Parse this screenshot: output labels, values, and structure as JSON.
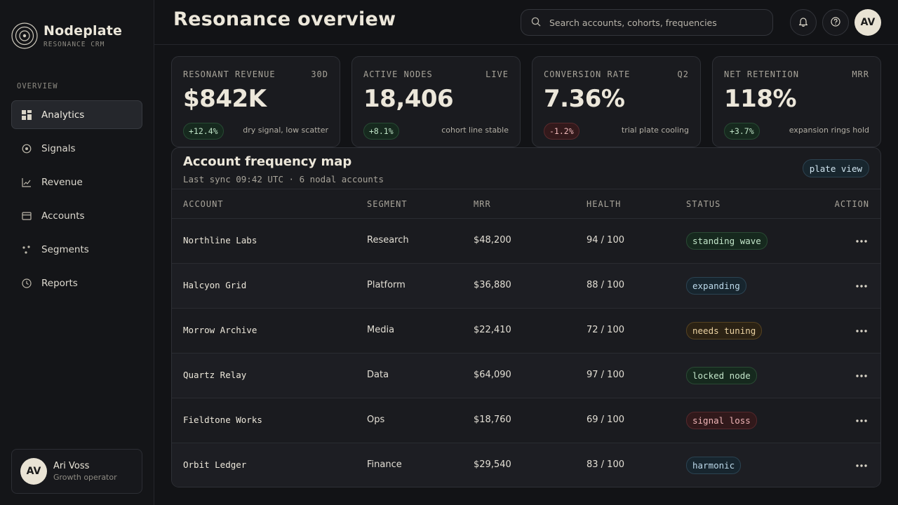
{
  "brand": {
    "name": "Nodeplate",
    "subtitle": "RESONANCE CRM"
  },
  "sidebar": {
    "section_label": "OVERVIEW",
    "items": [
      {
        "label": "Analytics",
        "icon": "grid-icon",
        "active": true
      },
      {
        "label": "Signals",
        "icon": "target-icon"
      },
      {
        "label": "Revenue",
        "icon": "trend-line-icon"
      },
      {
        "label": "Accounts",
        "icon": "folder-icon"
      },
      {
        "label": "Segments",
        "icon": "scatter-dots-icon"
      },
      {
        "label": "Reports",
        "icon": "clock-icon"
      }
    ],
    "user": {
      "initials": "AV",
      "name": "Ari Voss",
      "role": "Growth operator"
    }
  },
  "header": {
    "title": "Resonance overview",
    "search_placeholder": "Search accounts, cohorts, frequencies",
    "avatar_initials": "AV"
  },
  "stats": [
    {
      "label": "RESONANT REVENUE",
      "period": "30D",
      "value": "$842K",
      "delta": "+12.4%",
      "trend": "up",
      "note": "dry signal, low scatter"
    },
    {
      "label": "ACTIVE NODES",
      "period": "LIVE",
      "value": "18,406",
      "delta": "+8.1%",
      "trend": "up",
      "note": "cohort line stable"
    },
    {
      "label": "CONVERSION RATE",
      "period": "Q2",
      "value": "7.36%",
      "delta": "-1.2%",
      "trend": "down",
      "note": "trial plate cooling"
    },
    {
      "label": "NET RETENTION",
      "period": "MRR",
      "value": "118%",
      "delta": "+3.7%",
      "trend": "up",
      "note": "expansion rings hold"
    }
  ],
  "table": {
    "title": "Account frequency map",
    "subtitle": "Last sync 09:42 UTC · 6 nodal accounts",
    "view_button": "plate view",
    "columns": [
      "ACCOUNT",
      "SEGMENT",
      "MRR",
      "HEALTH",
      "STATUS",
      "ACTION"
    ],
    "rows": [
      {
        "account": "Northline Labs",
        "segment": "Research",
        "mrr": "$48,200",
        "health": "94 / 100",
        "status": "standing wave",
        "status_color": "green"
      },
      {
        "account": "Halcyon Grid",
        "segment": "Platform",
        "mrr": "$36,880",
        "health": "88 / 100",
        "status": "expanding",
        "status_color": "blue"
      },
      {
        "account": "Morrow Archive",
        "segment": "Media",
        "mrr": "$22,410",
        "health": "72 / 100",
        "status": "needs tuning",
        "status_color": "amber"
      },
      {
        "account": "Quartz Relay",
        "segment": "Data",
        "mrr": "$64,090",
        "health": "97 / 100",
        "status": "locked node",
        "status_color": "green"
      },
      {
        "account": "Fieldtone Works",
        "segment": "Ops",
        "mrr": "$18,760",
        "health": "69 / 100",
        "status": "signal loss",
        "status_color": "red"
      },
      {
        "account": "Orbit Ledger",
        "segment": "Finance",
        "mrr": "$29,540",
        "health": "83 / 100",
        "status": "harmonic",
        "status_color": "blue"
      }
    ]
  }
}
